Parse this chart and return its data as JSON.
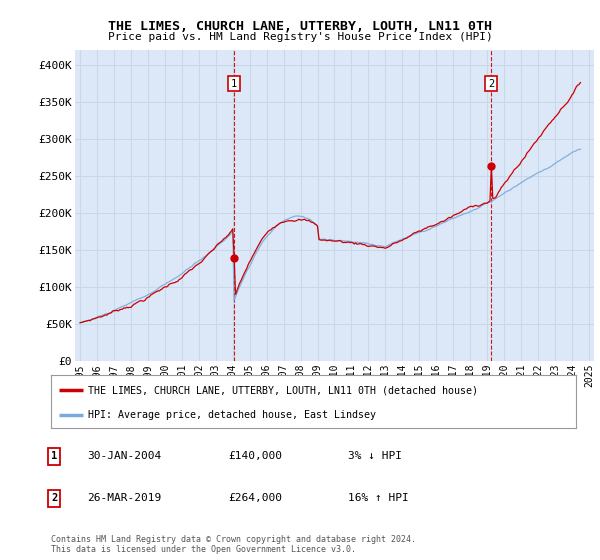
{
  "title": "THE LIMES, CHURCH LANE, UTTERBY, LOUTH, LN11 0TH",
  "subtitle": "Price paid vs. HM Land Registry's House Price Index (HPI)",
  "legend_label_red": "THE LIMES, CHURCH LANE, UTTERBY, LOUTH, LN11 0TH (detached house)",
  "legend_label_blue": "HPI: Average price, detached house, East Lindsey",
  "annotation1_label": "1",
  "annotation1_date": "30-JAN-2004",
  "annotation1_price": "£140,000",
  "annotation1_hpi": "3% ↓ HPI",
  "annotation1_year": 2004.08,
  "annotation1_value": 140000,
  "annotation2_label": "2",
  "annotation2_date": "26-MAR-2019",
  "annotation2_price": "£264,000",
  "annotation2_hpi": "16% ↑ HPI",
  "annotation2_year": 2019.23,
  "annotation2_value": 264000,
  "ylim": [
    0,
    420000
  ],
  "yticks": [
    0,
    50000,
    100000,
    150000,
    200000,
    250000,
    300000,
    350000,
    400000
  ],
  "ytick_labels": [
    "£0",
    "£50K",
    "£100K",
    "£150K",
    "£200K",
    "£250K",
    "£300K",
    "£350K",
    "£400K"
  ],
  "background_color": "#ffffff",
  "plot_bg_color": "#dce8f8",
  "grid_color": "#c8d8e8",
  "red_color": "#cc0000",
  "blue_color": "#7aaadd",
  "vline_color": "#cc0000",
  "footnote": "Contains HM Land Registry data © Crown copyright and database right 2024.\nThis data is licensed under the Open Government Licence v3.0."
}
